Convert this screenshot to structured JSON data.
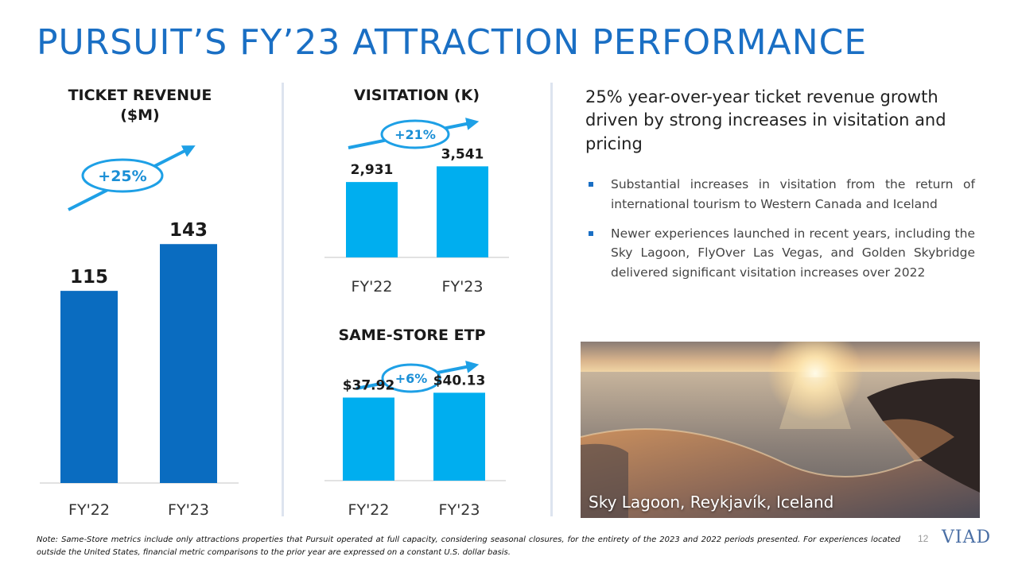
{
  "title": "PURSUIT’S FY’23 ATTRACTION PERFORMANCE",
  "colors": {
    "title": "#1a6fc4",
    "bar_dark": "#0a6cc0",
    "bar_light": "#00aeef",
    "arrow": "#1ea0e6",
    "badge_text": "#1a8fd6",
    "axis": "#d9d9d9"
  },
  "chart_data": [
    {
      "id": "ticket_revenue",
      "type": "bar",
      "title": "TICKET REVENUE ($M)",
      "title_lines": [
        "TICKET REVENUE",
        "($M)"
      ],
      "categories": [
        "FY'22",
        "FY'23"
      ],
      "values": [
        115,
        143
      ],
      "value_labels": [
        "115",
        "143"
      ],
      "ylim": [
        0,
        155
      ],
      "growth_label": "+25%",
      "legend": "none",
      "grid": false
    },
    {
      "id": "visitation",
      "type": "bar",
      "title": "VISITATION (K)",
      "categories": [
        "FY'22",
        "FY'23"
      ],
      "values": [
        2931,
        3541
      ],
      "value_labels": [
        "2,931",
        "3,541"
      ],
      "ylim": [
        0,
        3800
      ],
      "growth_label": "+21%",
      "legend": "none",
      "grid": false
    },
    {
      "id": "same_store_etp",
      "type": "bar",
      "title": "SAME-STORE ETP",
      "categories": [
        "FY'22",
        "FY'23"
      ],
      "values": [
        37.92,
        40.13
      ],
      "value_labels": [
        "$37.92",
        "$40.13"
      ],
      "ylim": [
        0,
        70
      ],
      "growth_label": "+6%",
      "legend": "none",
      "grid": false
    }
  ],
  "headline": "25% year-over-year ticket revenue growth driven by strong increases in visitation and pricing",
  "bullets": [
    "Substantial increases in visitation from the return of international tourism to Western Canada and Iceland",
    "Newer experiences launched in recent years, including the Sky Lagoon, FlyOver Las Vegas, and Golden Skybridge delivered significant visitation increases over 2022"
  ],
  "photo_caption": "Sky Lagoon, Reykjavík, Iceland",
  "footnote": "Note: Same-Store metrics include only attractions properties that Pursuit operated at full capacity, considering seasonal closures, for the entirety of the 2023 and 2022 periods presented. For experiences located outside the United States, financial metric comparisons to the prior year are expressed on a constant U.S. dollar basis.",
  "page_number": "12",
  "logo_text": "VIAD"
}
